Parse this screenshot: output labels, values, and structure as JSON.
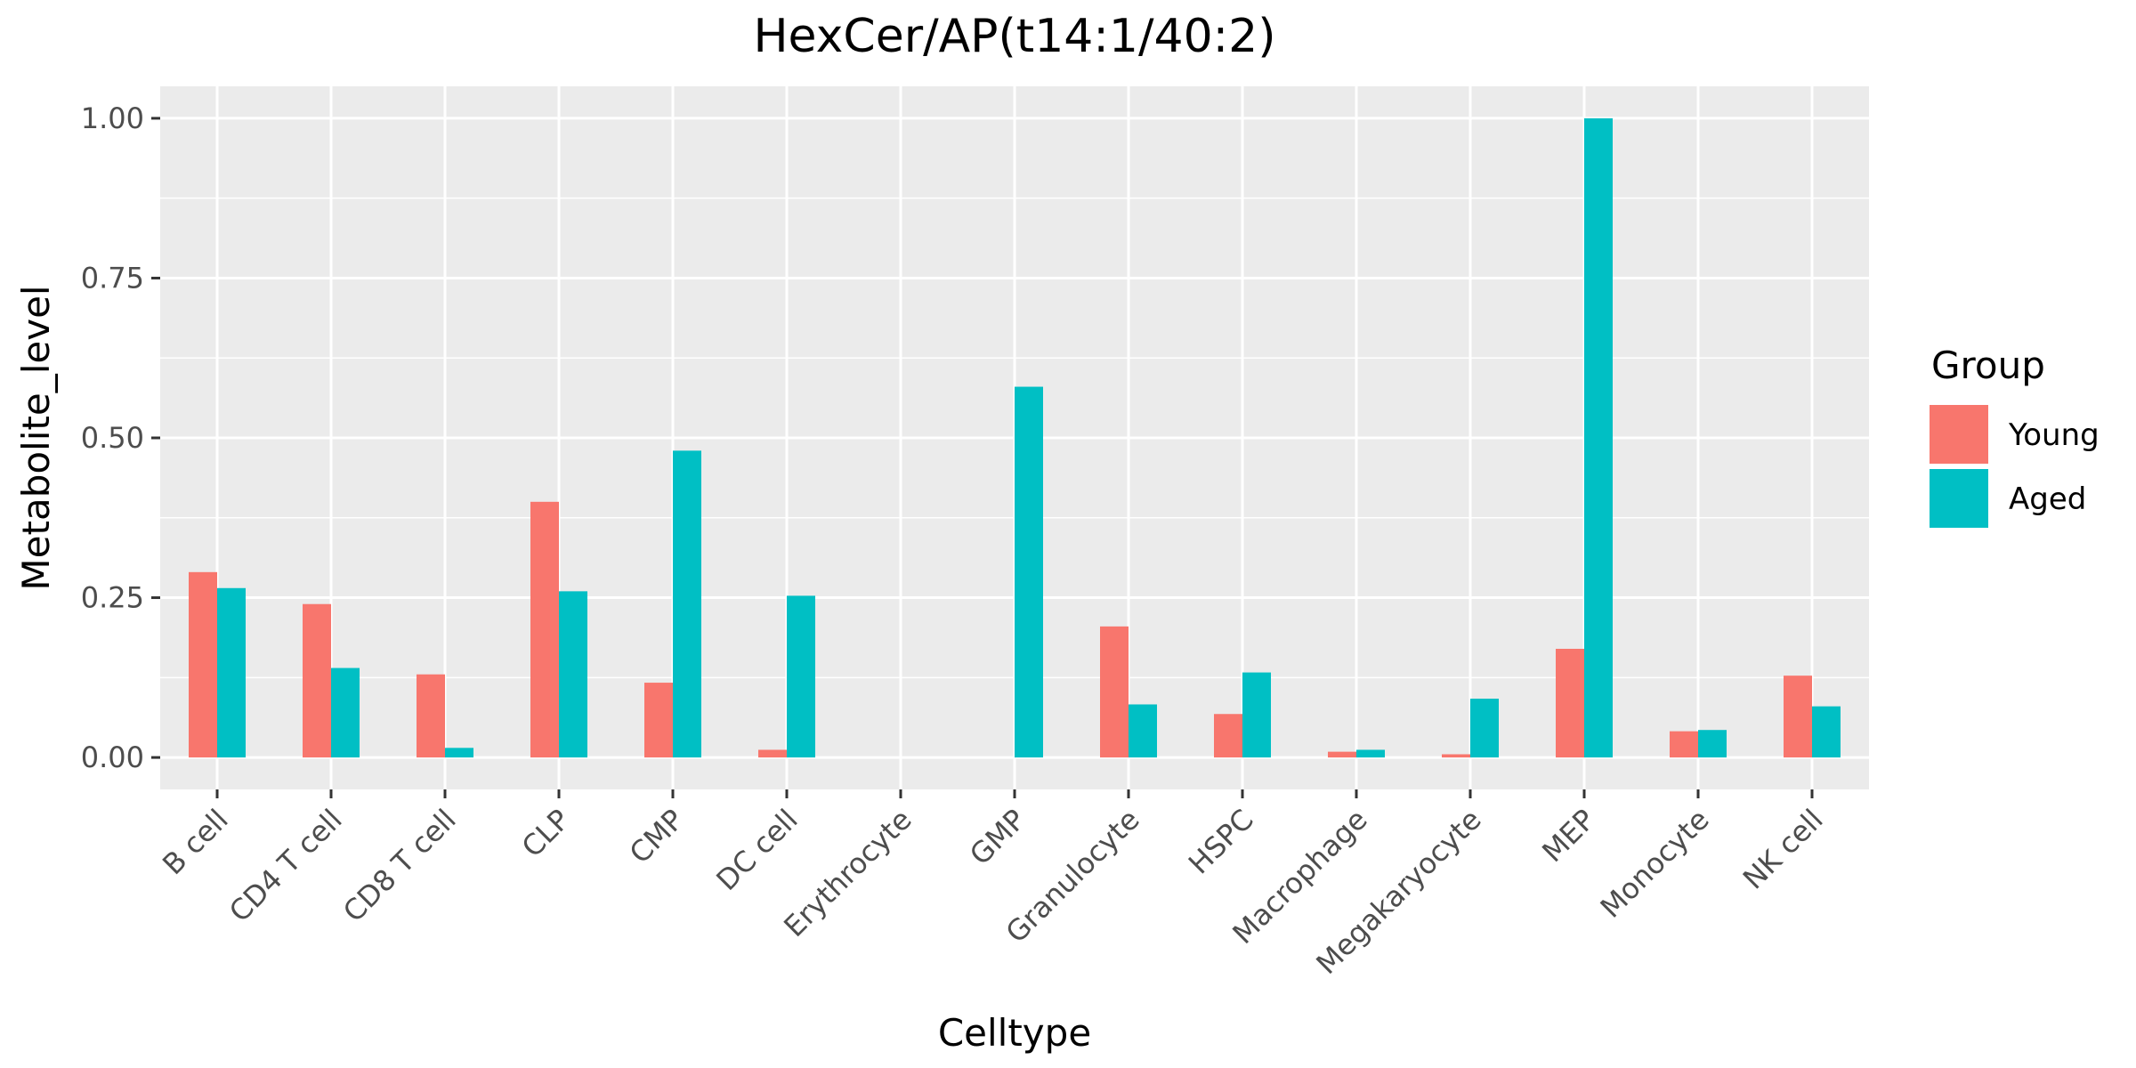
{
  "chart_data": {
    "type": "bar",
    "title": "HexCer/AP(t14:1/40:2)",
    "xlabel": "Celltype",
    "ylabel": "Metabolite_level",
    "ylim": [
      -0.05,
      1.05
    ],
    "y_ticks": [
      {
        "value": 0.0,
        "label": "0.00"
      },
      {
        "value": 0.25,
        "label": "0.25"
      },
      {
        "value": 0.5,
        "label": "0.50"
      },
      {
        "value": 0.75,
        "label": "0.75"
      },
      {
        "value": 1.0,
        "label": "1.00"
      }
    ],
    "grid": true,
    "legend_position": "right",
    "legend_title": "Group",
    "categories": [
      "B cell",
      "CD4 T cell",
      "CD8 T cell",
      "CLP",
      "CMP",
      "DC cell",
      "Erythrocyte",
      "GMP",
      "Granulocyte",
      "HSPC",
      "Macrophage",
      "Megakaryocyte",
      "MEP",
      "Monocyte",
      "NK cell"
    ],
    "series": [
      {
        "name": "Young",
        "color": "#F8766D",
        "values": [
          0.29,
          0.24,
          0.13,
          0.4,
          0.117,
          0.012,
          0.0,
          0.0,
          0.205,
          0.068,
          0.009,
          0.005,
          0.17,
          0.041,
          0.128
        ]
      },
      {
        "name": "Aged",
        "color": "#00BFC4",
        "values": [
          0.265,
          0.14,
          0.015,
          0.26,
          0.48,
          0.253,
          0.0,
          0.58,
          0.083,
          0.133,
          0.012,
          0.092,
          1.0,
          0.043,
          0.08
        ]
      }
    ],
    "panel_color": "#EBEBEB",
    "grid_color": "#FFFFFF"
  }
}
